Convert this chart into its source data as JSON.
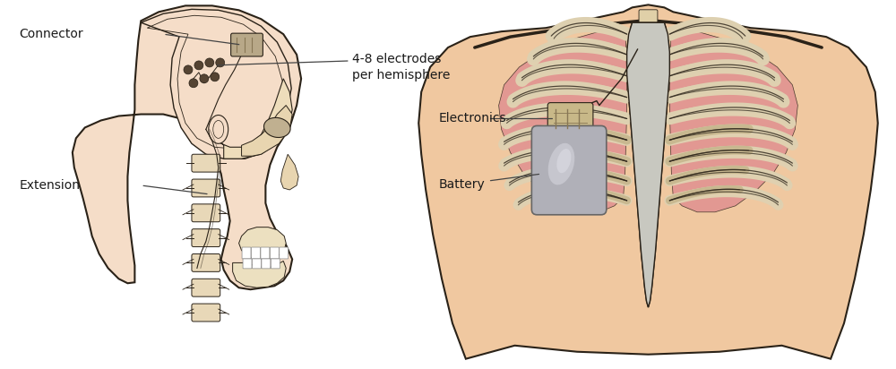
{
  "background_color": "#ffffff",
  "skin_color": "#f5ddc8",
  "skin_color_chest": "#f0c8a0",
  "bone_color": "#e8d5a8",
  "lung_color": "#e09090",
  "sternum_color": "#c8c8c0",
  "outline_color": "#2a2218",
  "line_color": "#444444",
  "annotation_color": "#1a1a1a",
  "labels": {
    "connector": "Connector",
    "electrodes": "4-8 electrodes\nper hemisphere",
    "extension": "Extension",
    "electronics": "Electronics",
    "battery": "Battery"
  }
}
